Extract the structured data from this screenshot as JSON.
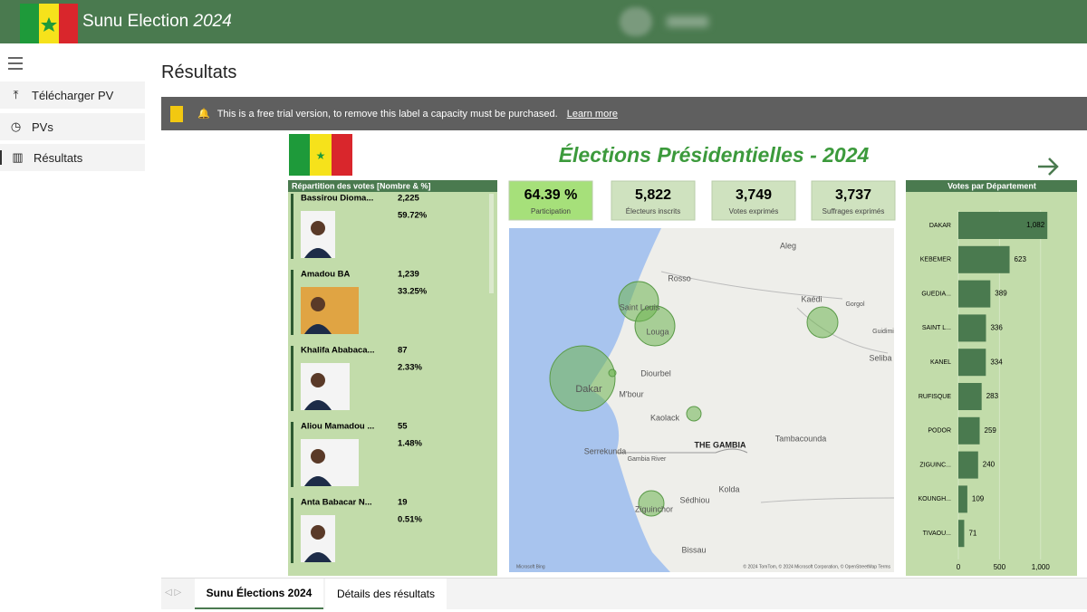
{
  "header": {
    "title": "Sunu Election",
    "year": "2024"
  },
  "nav": [
    "Télécharger PV",
    "PVs",
    "Résultats"
  ],
  "page_title": "Résultats",
  "banner": {
    "text": "This is a free trial version, to remove this label a capacity must be purchased.",
    "link": "Learn more"
  },
  "report": {
    "title": "Élections Présidentielles - 2024",
    "candidates_title": "Répartition des votes [Nombre & %]",
    "candidates": [
      {
        "name": "Bassirou Dioma...",
        "votes": "2,225",
        "percent": "59.72%"
      },
      {
        "name": "Amadou BA",
        "votes": "1,239",
        "percent": "33.25%"
      },
      {
        "name": "Khalifa Ababaca...",
        "votes": "87",
        "percent": "2.33%"
      },
      {
        "name": "Aliou Mamadou ...",
        "votes": "55",
        "percent": "1.48%"
      },
      {
        "name": "Anta Babacar N...",
        "votes": "19",
        "percent": "0.51%"
      }
    ],
    "kpis": [
      {
        "value": "64.39 %",
        "label": "Participation"
      },
      {
        "value": "5,822",
        "label": "Électeurs inscrits"
      },
      {
        "value": "3,749",
        "label": "Votes exprimés"
      },
      {
        "value": "3,737",
        "label": "Suffrages exprimés"
      }
    ],
    "map": {
      "places": [
        "Aleg",
        "Rosso",
        "Saint Louis",
        "Louga",
        "Kaédi",
        "Gorgol",
        "Guidimi",
        "Diourbel",
        "Dakar",
        "M'bour",
        "Seliba",
        "Kaolack",
        "Tambacounda",
        "THE GAMBIA",
        "Serrekunda",
        "Gambia River",
        "Kolda",
        "Sédhiou",
        "Ziguinchor",
        "Bissau"
      ],
      "brand": "Microsoft Bing",
      "credits": "© 2024 TomTom, © 2024 Microsoft Corporation, © OpenStreetMap Terms"
    }
  },
  "chart_data": {
    "type": "bar",
    "orientation": "horizontal",
    "title": "Votes par Département",
    "color": "#4a7a4f",
    "categories": [
      "DAKAR",
      "KEBEMER",
      "GUEDIA...",
      "SAINT L...",
      "KANEL",
      "RUFISQUE",
      "PODOR",
      "ZIGUINC...",
      "KOUNGH...",
      "TIVAOU..."
    ],
    "values": [
      1082,
      623,
      389,
      336,
      334,
      283,
      259,
      240,
      109,
      71
    ],
    "value_labels": [
      "1,082",
      "623",
      "389",
      "336",
      "334",
      "283",
      "259",
      "240",
      "109",
      "71"
    ],
    "xlim": [
      0,
      1300
    ],
    "xticks": [
      0,
      500,
      {
        "value": 1000,
        "label": "1,000"
      }
    ]
  },
  "tabs": [
    "Sunu Élections 2024",
    "Détails des résultats"
  ]
}
